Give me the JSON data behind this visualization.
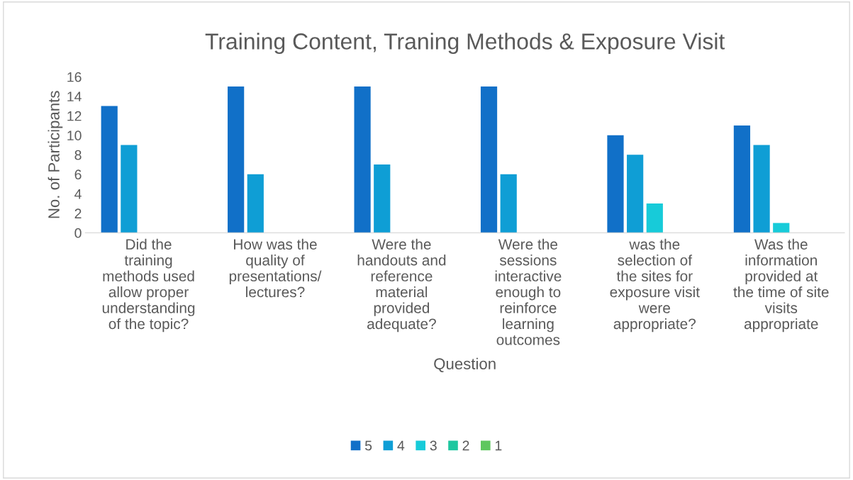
{
  "chart_data": {
    "type": "bar",
    "title": "Training Content, Traning Methods & Exposure Visit",
    "xlabel": "Question",
    "ylabel": "No. of Participants",
    "categories": [
      "Did the\ntraining\nmethods used\nallow proper\nunderstanding\nof the topic?",
      "How was the\nquality of\npresentations/\nlectures?",
      "Were the\nhandouts and\nreference\nmaterial\nprovided\nadequate?",
      "Were the\nsessions\ninteractive\nenough to\nreinforce\nlearning\noutcomes",
      "was the\nselection of\nthe sites for\nexposure visit\nwere\nappropriate?",
      "Was the\ninformation\nprovided at\nthe time of site\nvisits\nappropriate"
    ],
    "series": [
      {
        "name": "5",
        "color": "#1170c8",
        "values": [
          13,
          15,
          15,
          15,
          10,
          11
        ]
      },
      {
        "name": "4",
        "color": "#0f9ed5",
        "values": [
          9,
          6,
          7,
          6,
          8,
          9
        ]
      },
      {
        "name": "3",
        "color": "#17cbd9",
        "values": [
          0,
          0,
          0,
          0,
          3,
          1
        ]
      },
      {
        "name": "2",
        "color": "#1fc7a0",
        "values": [
          0,
          0,
          0,
          0,
          0,
          0
        ]
      },
      {
        "name": "1",
        "color": "#5fc75f",
        "values": [
          0,
          0,
          0,
          0,
          0,
          0
        ]
      }
    ],
    "ylim": [
      0,
      16
    ],
    "yticks": [
      0,
      2,
      4,
      6,
      8,
      10,
      12,
      14,
      16
    ],
    "grid": false,
    "legend": "bottom"
  }
}
